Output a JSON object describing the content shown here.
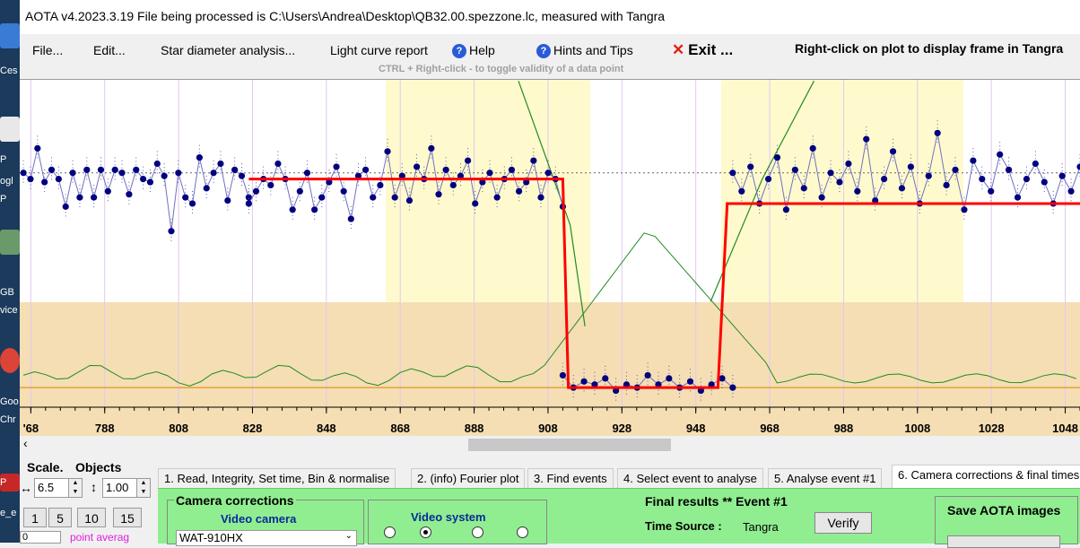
{
  "desktop": {
    "labels": [
      "Ces",
      "P",
      "ogl",
      "P",
      "GB",
      "vice",
      "Goo",
      "Chr",
      "P",
      "e_e"
    ]
  },
  "window": {
    "title": "AOTA v4.2023.3.19    File being processed is C:\\Users\\Andrea\\Desktop\\QB32.00.spezzone.lc, measured with Tangra"
  },
  "menu": {
    "file": "File...",
    "edit": "Edit...",
    "star_diameter": "Star diameter analysis...",
    "light_curve": "Light curve report",
    "help": "Help",
    "hints": "Hints and Tips",
    "exit": "Exit ...",
    "right_click_hint": "Right-click on plot to display frame in Tangra",
    "ctrl_hint": "CTRL + Right-click  -  to toggle validity of a data point"
  },
  "chart_data": {
    "type": "line",
    "x_ticks": [
      "'68",
      "788",
      "808",
      "828",
      "848",
      "868",
      "888",
      "908",
      "928",
      "948",
      "968",
      "988",
      "1008",
      "1028",
      "1048"
    ],
    "xlim": [
      765,
      1052
    ],
    "series": [
      {
        "values": [
          0.72,
          0.7,
          0.8,
          0.69,
          0.73,
          0.7,
          0.61,
          0.72,
          0.64,
          0.73,
          0.64,
          0.73,
          0.66,
          0.73,
          0.72,
          0.65,
          0.73,
          0.7,
          0.69,
          0.75,
          0.71,
          0.53,
          0.72,
          0.64,
          0.62,
          0.77,
          0.67,
          0.72,
          0.75,
          0.63,
          0.73,
          0.71,
          0.64
        ]
      },
      {
        "values": [
          0.62,
          0.66,
          0.7,
          0.68,
          0.75,
          0.7,
          0.6,
          0.66,
          0.72,
          0.6,
          0.64,
          0.69,
          0.74,
          0.66,
          0.57,
          0.71,
          0.73,
          0.64,
          0.68,
          0.79,
          0.64,
          0.71,
          0.63,
          0.74,
          0.7,
          0.8,
          0.65,
          0.73,
          0.68,
          0.71,
          0.76,
          0.62,
          0.69,
          0.72,
          0.64,
          0.7,
          0.73,
          0.66,
          0.69,
          0.76,
          0.64,
          0.72,
          0.7,
          0.61
        ]
      },
      {
        "values": [
          0.06,
          0.02,
          0.04,
          0.03,
          0.05,
          0.01,
          0.03,
          0.02,
          0.06,
          0.03,
          0.05,
          0.02,
          0.04,
          0.01,
          0.03,
          0.05,
          0.02
        ]
      },
      {
        "values": [
          0.72,
          0.66,
          0.74,
          0.62,
          0.7,
          0.77,
          0.6,
          0.73,
          0.67,
          0.8,
          0.64,
          0.72,
          0.69,
          0.75,
          0.66,
          0.83,
          0.63,
          0.7,
          0.79,
          0.67,
          0.74,
          0.62,
          0.71,
          0.85,
          0.68,
          0.73,
          0.6,
          0.76,
          0.7,
          0.66,
          0.78,
          0.73,
          0.64,
          0.7,
          0.75,
          0.69,
          0.62,
          0.71,
          0.66,
          0.74
        ]
      }
    ],
    "ylim": [
      0,
      1
    ],
    "grid": true
  },
  "scale_panel": {
    "title": "Scale.",
    "objects": "Objects",
    "h_scale": "6.5",
    "v_scale": "1.00",
    "buttons": [
      "1",
      "5",
      "10",
      "15"
    ],
    "point_avg_value": "0",
    "point_avg_label": "point averag"
  },
  "tabs": [
    "1.  Read, Integrity, Set time, Bin & normalise",
    "2. (info)  Fourier plot",
    "3. Find events",
    "4. Select event to analyse",
    "5. Analyse event #1",
    "6. Camera corrections & final times"
  ],
  "camera": {
    "group_title": "Camera corrections",
    "video_camera": "Video camera",
    "camera_value": "WAT-910HX",
    "video_system": "Video system"
  },
  "final": {
    "title": "Final results  **  Event #1",
    "time_source_label": "Time Source :",
    "time_source_value": "Tangra",
    "verify": "Verify"
  },
  "save": {
    "title": "Save AOTA images"
  },
  "colors": {
    "main_band": "#f5deb3",
    "yellow_band": "#fffacd",
    "data_line": "#7070c0",
    "data_points": "#000080",
    "model_line": "#ff0000",
    "residual_line": "#228b22",
    "green_panel": "#90ee90"
  }
}
